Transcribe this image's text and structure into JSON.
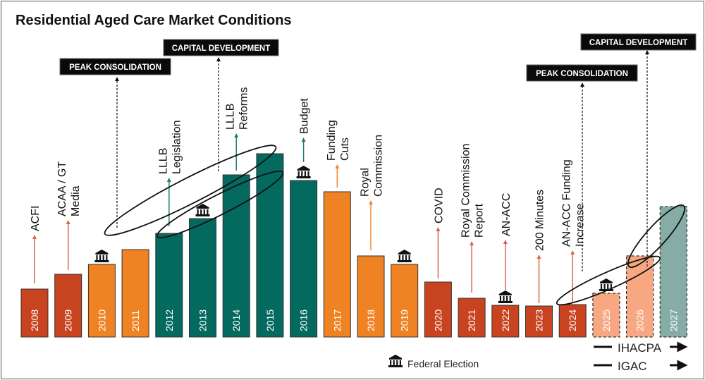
{
  "chart_data": {
    "type": "bar",
    "title": "Residential Aged Care Market Conditions",
    "categories": [
      "2008",
      "2009",
      "2010",
      "2011",
      "2012",
      "2013",
      "2014",
      "2015",
      "2016",
      "2017",
      "2018",
      "2019",
      "2020",
      "2021",
      "2022",
      "2023",
      "2024",
      "2025",
      "2026",
      "2027"
    ],
    "values": [
      68,
      89,
      103,
      124,
      147,
      168,
      230,
      260,
      222,
      206,
      115,
      103,
      78,
      55,
      45,
      44,
      46,
      62,
      115,
      185
    ],
    "projected": [
      false,
      false,
      false,
      false,
      false,
      false,
      false,
      false,
      false,
      false,
      false,
      false,
      false,
      false,
      false,
      false,
      false,
      true,
      true,
      true
    ],
    "bar_colors": [
      "#c8431f",
      "#c8431f",
      "#ef8222",
      "#ef8222",
      "#04695e",
      "#04695e",
      "#04695e",
      "#04695e",
      "#04695e",
      "#ef8222",
      "#ef8222",
      "#ef8222",
      "#c8431f",
      "#c8431f",
      "#c8431f",
      "#c8431f",
      "#c8431f",
      "#f7a882",
      "#f7a882",
      "#86aca6"
    ],
    "federal_election_years": [
      "2010",
      "2013",
      "2016",
      "2019",
      "2022",
      "2025"
    ],
    "annotations": [
      {
        "year": "2008",
        "lines": [
          "ACFI"
        ],
        "color": "#d9664a"
      },
      {
        "year": "2009",
        "lines": [
          "ACAA / GT",
          "Media"
        ],
        "color": "#d9664a"
      },
      {
        "year": "2012",
        "lines": [
          "LLLB",
          "Legislation"
        ],
        "color": "#1a7f73"
      },
      {
        "year": "2014",
        "lines": [
          "LLLB",
          "Reforms"
        ],
        "color": "#1a7f73"
      },
      {
        "year": "2016",
        "lines": [
          "Budget"
        ],
        "color": "#1a7f73"
      },
      {
        "year": "2017",
        "lines": [
          "Funding",
          "Cuts"
        ],
        "color": "#ef8a3a"
      },
      {
        "year": "2018",
        "lines": [
          "Royal",
          "Commission"
        ],
        "color": "#ef8a3a"
      },
      {
        "year": "2020",
        "lines": [
          "COVID"
        ],
        "color": "#d9664a"
      },
      {
        "year": "2021",
        "lines": [
          "Royal Commission",
          "Report"
        ],
        "color": "#d9664a"
      },
      {
        "year": "2022",
        "lines": [
          "AN-ACC"
        ],
        "color": "#d9664a"
      },
      {
        "year": "2023",
        "lines": [
          "200 Minutes"
        ],
        "color": "#d9664a"
      },
      {
        "year": "2024",
        "lines": [
          "AN-ACC Funding",
          "Increase"
        ],
        "color": "#d9664a"
      }
    ],
    "phases": [
      {
        "label": "PEAK CONSOLIDATION",
        "year": "2010"
      },
      {
        "label": "CAPITAL DEVELOPMENT",
        "year": "2014"
      },
      {
        "label": "PEAK CONSOLIDATION",
        "year": "2024"
      },
      {
        "label": "CAPITAL DEVELOPMENT",
        "year": "2026"
      }
    ],
    "legend": {
      "federal_election": "Federal Election"
    },
    "timelines": [
      {
        "label": "IHACPA"
      },
      {
        "label": "IGAC"
      }
    ]
  }
}
